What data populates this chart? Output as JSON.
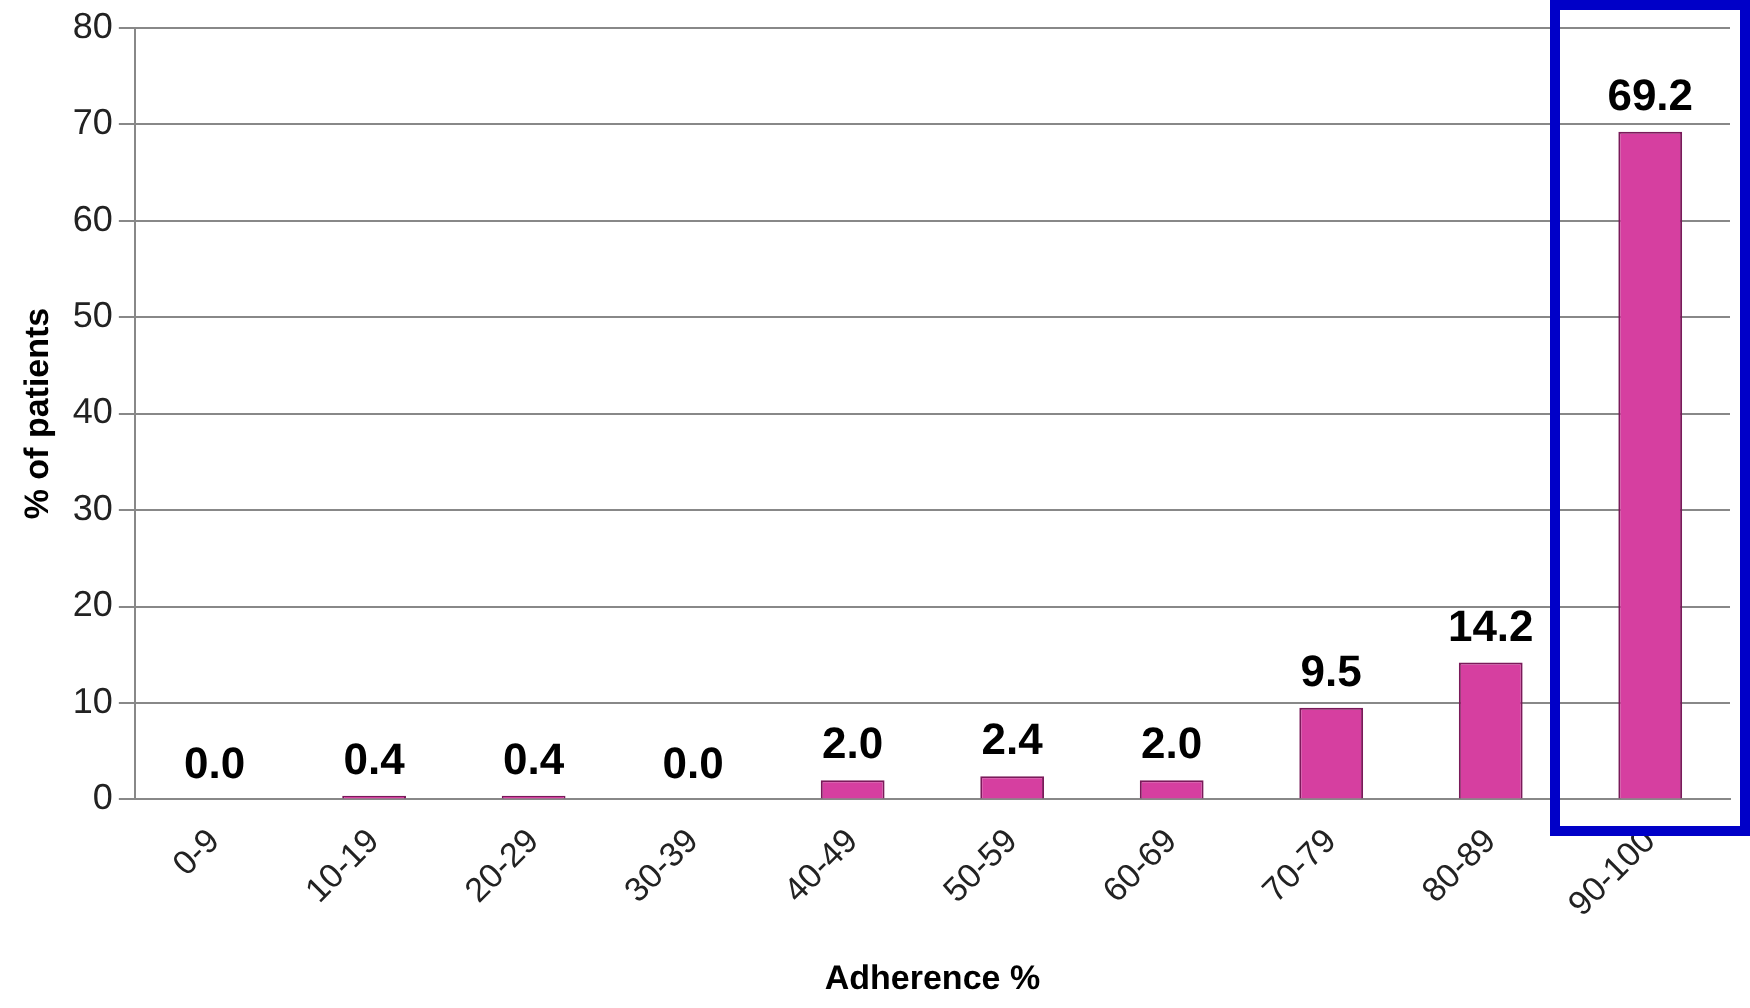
{
  "chart_data": {
    "type": "bar",
    "xlabel": "Adherence %",
    "ylabel": "% of patients",
    "categories": [
      "0-9",
      "10-19",
      "20-29",
      "30-39",
      "40-49",
      "50-59",
      "60-69",
      "70-79",
      "80-89",
      "90-100"
    ],
    "values": [
      0.0,
      0.4,
      0.4,
      0.0,
      2.0,
      2.4,
      2.0,
      9.5,
      14.2,
      69.2
    ],
    "value_labels": [
      "0.0",
      "0.4",
      "0.4",
      "0.0",
      "2.0",
      "2.4",
      "2.0",
      "9.5",
      "14.2",
      "69.2"
    ],
    "color": "#d63fa0",
    "ylim": [
      0,
      80
    ],
    "yticks": [
      0,
      10,
      20,
      30,
      40,
      50,
      60,
      70,
      80
    ],
    "grid": "y",
    "legend": false
  }
}
